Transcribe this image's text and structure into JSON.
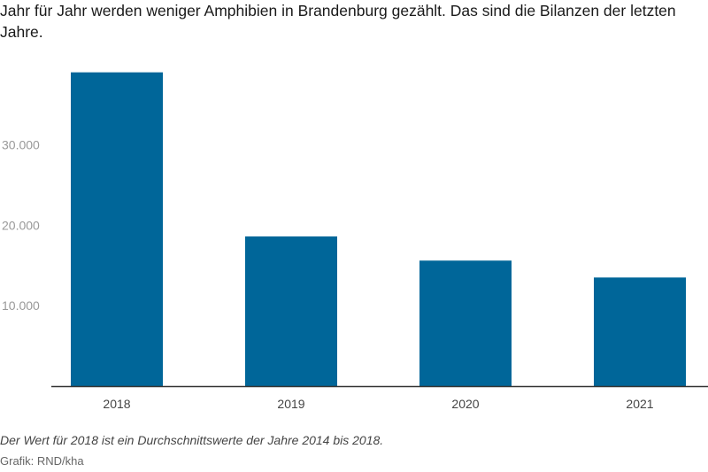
{
  "chart_data": {
    "type": "bar",
    "title": "Jahr für Jahr werden weniger Amphibien in Brandenburg gezählt. Das sind die Bilanzen der letzten Jahre.",
    "categories": [
      "2018",
      "2019",
      "2020",
      "2021"
    ],
    "values": [
      39000,
      18600,
      15600,
      13500
    ],
    "ylim": [
      0,
      40000
    ],
    "yticks": [
      {
        "value": 10000,
        "label": "10.000"
      },
      {
        "value": 20000,
        "label": "20.000"
      },
      {
        "value": 30000,
        "label": "30.000"
      }
    ],
    "grid": false,
    "xlabel": "",
    "ylabel": "",
    "bar_color": "#006699",
    "tick_label_color": "#999999",
    "axis_color": "#333333"
  },
  "notes": {
    "footnote": "Der Wert für 2018 ist ein Durchschnittswerte der Jahre 2014 bis 2018.",
    "credit": "Grafik: RND/kha"
  }
}
